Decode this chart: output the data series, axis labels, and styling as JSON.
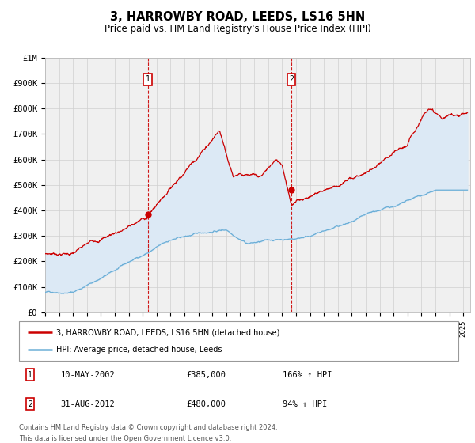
{
  "title": "3, HARROWBY ROAD, LEEDS, LS16 5HN",
  "subtitle": "Price paid vs. HM Land Registry's House Price Index (HPI)",
  "ylim": [
    0,
    1000000
  ],
  "yticks": [
    0,
    100000,
    200000,
    300000,
    400000,
    500000,
    600000,
    700000,
    800000,
    900000,
    1000000
  ],
  "ytick_labels": [
    "£0",
    "£100K",
    "£200K",
    "£300K",
    "£400K",
    "£500K",
    "£600K",
    "£700K",
    "£800K",
    "£900K",
    "£1M"
  ],
  "xlim_start": 1995.0,
  "xlim_end": 2025.5,
  "sale1_x": 2002.36,
  "sale1_y": 385000,
  "sale2_x": 2012.67,
  "sale2_y": 480000,
  "sale1_date": "10-MAY-2002",
  "sale1_price": "£385,000",
  "sale1_hpi": "166% ↑ HPI",
  "sale2_date": "31-AUG-2012",
  "sale2_price": "£480,000",
  "sale2_hpi": "94% ↑ HPI",
  "line_color_hpi": "#6baed6",
  "line_color_price": "#cc0000",
  "fill_color": "#dce9f5",
  "grid_color": "#d0d0d0",
  "bg_color": "#f0f0f0",
  "legend_label1": "3, HARROWBY ROAD, LEEDS, LS16 5HN (detached house)",
  "legend_label2": "HPI: Average price, detached house, Leeds",
  "footer1": "Contains HM Land Registry data © Crown copyright and database right 2024.",
  "footer2": "This data is licensed under the Open Government Licence v3.0."
}
